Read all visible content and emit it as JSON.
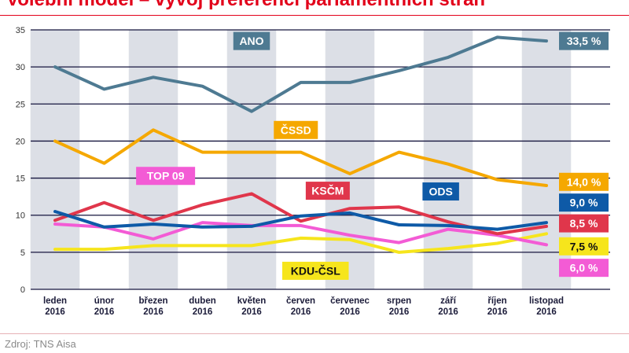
{
  "chart_data": {
    "type": "line",
    "title": "Volební model – vývoj preferencí parlamentních stran",
    "source": "Zdroj: TNS Aisa",
    "ylim": [
      0,
      35
    ],
    "yticks": [
      0,
      5,
      10,
      15,
      20,
      25,
      30,
      35
    ],
    "grid": true,
    "categories": [
      {
        "month": "leden",
        "year": "2016"
      },
      {
        "month": "únor",
        "year": "2016"
      },
      {
        "month": "březen",
        "year": "2016"
      },
      {
        "month": "duben",
        "year": "2016"
      },
      {
        "month": "květen",
        "year": "2016"
      },
      {
        "month": "červen",
        "year": "2016"
      },
      {
        "month": "červenec",
        "year": "2016"
      },
      {
        "month": "srpen",
        "year": "2016"
      },
      {
        "month": "září",
        "year": "2016"
      },
      {
        "month": "říjen",
        "year": "2016"
      },
      {
        "month": "listopad",
        "year": "2016"
      }
    ],
    "series": [
      {
        "name": "ANO",
        "color": "#4e7a92",
        "label_index": 4,
        "label_value": 33.5,
        "end_label": "33,5 %",
        "end_value": 33.5,
        "values": [
          30.0,
          27.0,
          28.6,
          27.4,
          24.0,
          27.9,
          27.9,
          29.5,
          31.3,
          34.0,
          33.5
        ]
      },
      {
        "name": "ČSSD",
        "color": "#f5a800",
        "label_index": 4.9,
        "label_value": 21.5,
        "end_label": "14,0 %",
        "end_value": 14.5,
        "values": [
          20.0,
          17.0,
          21.5,
          18.5,
          18.5,
          18.5,
          15.6,
          18.5,
          16.9,
          14.8,
          14.0
        ]
      },
      {
        "name": "ODS",
        "color": "#0e5aa7",
        "label_index": 7.85,
        "label_value": 13.2,
        "end_label": "9,0 %",
        "end_value": 11.7,
        "values": [
          10.5,
          8.4,
          8.8,
          8.4,
          8.5,
          9.9,
          10.3,
          8.7,
          8.6,
          8.1,
          9.0
        ]
      },
      {
        "name": "KSČM",
        "color": "#e0364b",
        "label_index": 5.55,
        "label_value": 13.3,
        "end_label": "8,5 %",
        "end_value": 8.9,
        "values": [
          9.3,
          11.7,
          9.3,
          11.4,
          12.9,
          9.2,
          10.9,
          11.1,
          9.1,
          7.5,
          8.5
        ]
      },
      {
        "name": "TOP 09",
        "color": "#f35bd5",
        "label_index": 2.25,
        "label_value": 15.3,
        "end_label": "6,0 %",
        "end_value": 2.9,
        "values": [
          8.8,
          8.4,
          6.8,
          9.0,
          8.6,
          8.6,
          7.3,
          6.3,
          8.1,
          7.3,
          6.0
        ]
      },
      {
        "name": "KDU-ČSL",
        "color": "#f6e51c",
        "label_index": 5.3,
        "label_value": 2.5,
        "end_label": "7,5 %",
        "end_value": 5.8,
        "values": [
          5.4,
          5.4,
          5.9,
          5.9,
          5.9,
          6.9,
          6.7,
          5.0,
          5.5,
          6.2,
          7.5
        ]
      }
    ]
  }
}
